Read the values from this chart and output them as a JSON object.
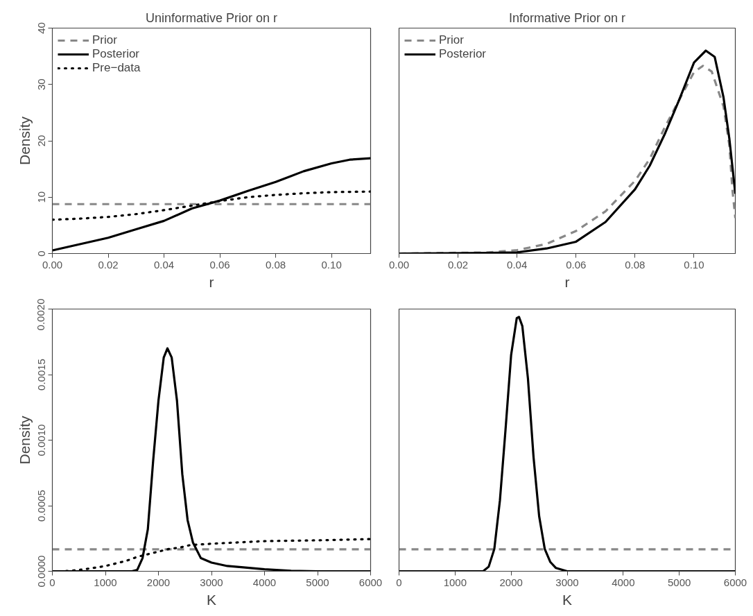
{
  "chart_data": [
    {
      "type": "line",
      "title": "Uninformative Prior on r",
      "xlabel": "r",
      "ylabel": "Density",
      "xlim": [
        0,
        0.114
      ],
      "ylim": [
        0,
        40
      ],
      "xticks": [
        {
          "value": 0,
          "label": "0.00"
        },
        {
          "value": 0.02,
          "label": "0.02"
        },
        {
          "value": 0.04,
          "label": "0.04"
        },
        {
          "value": 0.06,
          "label": "0.06"
        },
        {
          "value": 0.08,
          "label": "0.08"
        },
        {
          "value": 0.1,
          "label": "0.10"
        }
      ],
      "yticks": [
        0,
        10,
        20,
        30,
        40
      ],
      "grid": false,
      "legend": "top left",
      "series": [
        {
          "name": "Prior",
          "color": "#888888",
          "line_style": "dashed",
          "x": [
            0,
            0.114
          ],
          "values": [
            8.77,
            8.77
          ]
        },
        {
          "name": "Posterior",
          "color": "#000000",
          "line_style": "solid",
          "x": [
            0,
            0.02,
            0.03,
            0.04,
            0.05,
            0.06,
            0.07,
            0.08,
            0.09,
            0.1,
            0.1065,
            0.114
          ],
          "values": [
            0.55,
            2.8,
            4.3,
            5.8,
            8.0,
            9.4,
            11.1,
            12.7,
            14.6,
            16.0,
            16.65,
            16.9
          ]
        },
        {
          "name": "Pre−data",
          "color": "#000000",
          "line_style": "dotted",
          "x": [
            0,
            0.01,
            0.02,
            0.03,
            0.04,
            0.05,
            0.06,
            0.07,
            0.08,
            0.09,
            0.1,
            0.114
          ],
          "values": [
            6.0,
            6.2,
            6.5,
            7.0,
            7.7,
            8.5,
            9.3,
            10.0,
            10.4,
            10.7,
            10.9,
            11.0
          ]
        }
      ]
    },
    {
      "type": "line",
      "title": "Informative Prior on r",
      "xlabel": "r",
      "xlim": [
        0,
        0.114
      ],
      "ylim": [
        0,
        40
      ],
      "tick_labels": "x",
      "xticks": [
        {
          "value": 0,
          "label": "0.00"
        },
        {
          "value": 0.02,
          "label": "0.02"
        },
        {
          "value": 0.04,
          "label": "0.04"
        },
        {
          "value": 0.06,
          "label": "0.06"
        },
        {
          "value": 0.08,
          "label": "0.08"
        },
        {
          "value": 0.1,
          "label": "0.10"
        }
      ],
      "grid": false,
      "legend": "top left",
      "series": [
        {
          "name": "Prior",
          "color": "#888888",
          "line_style": "dashed",
          "x": [
            0,
            0.03,
            0.04,
            0.05,
            0.06,
            0.07,
            0.08,
            0.085,
            0.09,
            0.095,
            0.1,
            0.103,
            0.106,
            0.11,
            0.112,
            0.113,
            0.114
          ],
          "values": [
            0.0,
            0.2,
            0.6,
            1.7,
            4.0,
            7.5,
            12.9,
            16.8,
            22.3,
            27.3,
            32.2,
            33.3,
            32.3,
            26.1,
            19.1,
            11.4,
            6.3
          ]
        },
        {
          "name": "Posterior",
          "color": "#000000",
          "line_style": "solid",
          "x": [
            0,
            0.03,
            0.04,
            0.05,
            0.06,
            0.07,
            0.08,
            0.085,
            0.09,
            0.095,
            0.1,
            0.104,
            0.107,
            0.11,
            0.112,
            0.114
          ],
          "values": [
            0.0,
            0.1,
            0.2,
            0.9,
            2.1,
            5.6,
            11.4,
            15.6,
            21.1,
            27.3,
            33.9,
            36.0,
            34.9,
            27.7,
            20.3,
            10.6
          ]
        }
      ]
    },
    {
      "type": "line",
      "xlabel": "K",
      "ylabel": "Density",
      "xlim": [
        0,
        6000
      ],
      "ylim": [
        0,
        0.002
      ],
      "xticks": [
        0,
        1000,
        2000,
        3000,
        4000,
        5000,
        6000
      ],
      "yticks": [
        {
          "value": 0,
          "label": "0.0000"
        },
        {
          "value": 0.0005,
          "label": "0.0005"
        },
        {
          "value": 0.001,
          "label": "0.0010"
        },
        {
          "value": 0.0015,
          "label": "0.0015"
        },
        {
          "value": 0.002,
          "label": "0.0020"
        }
      ],
      "grid": false,
      "series": [
        {
          "color": "#888888",
          "line_style": "dashed",
          "x": [
            0,
            6000
          ],
          "values": [
            0.000167,
            0.000167
          ]
        },
        {
          "color": "#000000",
          "line_style": "solid",
          "x": [
            0,
            1500,
            1600,
            1700,
            1800,
            1900,
            2000,
            2100,
            2170,
            2250,
            2350,
            2450,
            2550,
            2650,
            2800,
            3000,
            3300,
            3600,
            4000,
            4500,
            5000,
            6000
          ],
          "values": [
            0,
            0,
            1e-05,
            0.0001,
            0.00032,
            0.00084,
            0.0013,
            0.00163,
            0.0017,
            0.00163,
            0.0013,
            0.00074,
            0.00039,
            0.00022,
            0.0001,
            6.6e-05,
            4e-05,
            3e-05,
            1.5e-05,
            4e-06,
            0,
            0
          ]
        },
        {
          "color": "#000000",
          "line_style": "dotted",
          "x": [
            0,
            200,
            400,
            600,
            800,
            1000,
            1200,
            1400,
            1600,
            1800,
            2000,
            2200,
            2400,
            2600,
            3000,
            4000,
            5000,
            6000
          ],
          "values": [
            0,
            0,
            6e-06,
            1.5e-05,
            2.7e-05,
            4e-05,
            6e-05,
            8e-05,
            0.00011,
            0.00013,
            0.00015,
            0.00017,
            0.00018,
            0.0002,
            0.00021,
            0.00023,
            0.000236,
            0.000246
          ]
        }
      ]
    },
    {
      "type": "line",
      "xlabel": "K",
      "xlim": [
        0,
        6000
      ],
      "ylim": [
        0,
        0.002
      ],
      "tick_labels": "x",
      "xticks": [
        0,
        1000,
        2000,
        3000,
        4000,
        5000,
        6000
      ],
      "grid": false,
      "series": [
        {
          "color": "#888888",
          "line_style": "dashed",
          "x": [
            0,
            6000
          ],
          "values": [
            0.000167,
            0.000167
          ]
        },
        {
          "color": "#000000",
          "line_style": "solid",
          "x": [
            0,
            1500,
            1600,
            1700,
            1800,
            1900,
            2000,
            2100,
            2140,
            2200,
            2300,
            2400,
            2500,
            2600,
            2700,
            2800,
            3000,
            6000
          ],
          "values": [
            0,
            0,
            3.5e-05,
            0.00017,
            0.00054,
            0.00108,
            0.00165,
            0.00193,
            0.00194,
            0.00187,
            0.00147,
            0.00087,
            0.00042,
            0.00017,
            7e-05,
            2.5e-05,
            0,
            0
          ]
        }
      ]
    }
  ]
}
